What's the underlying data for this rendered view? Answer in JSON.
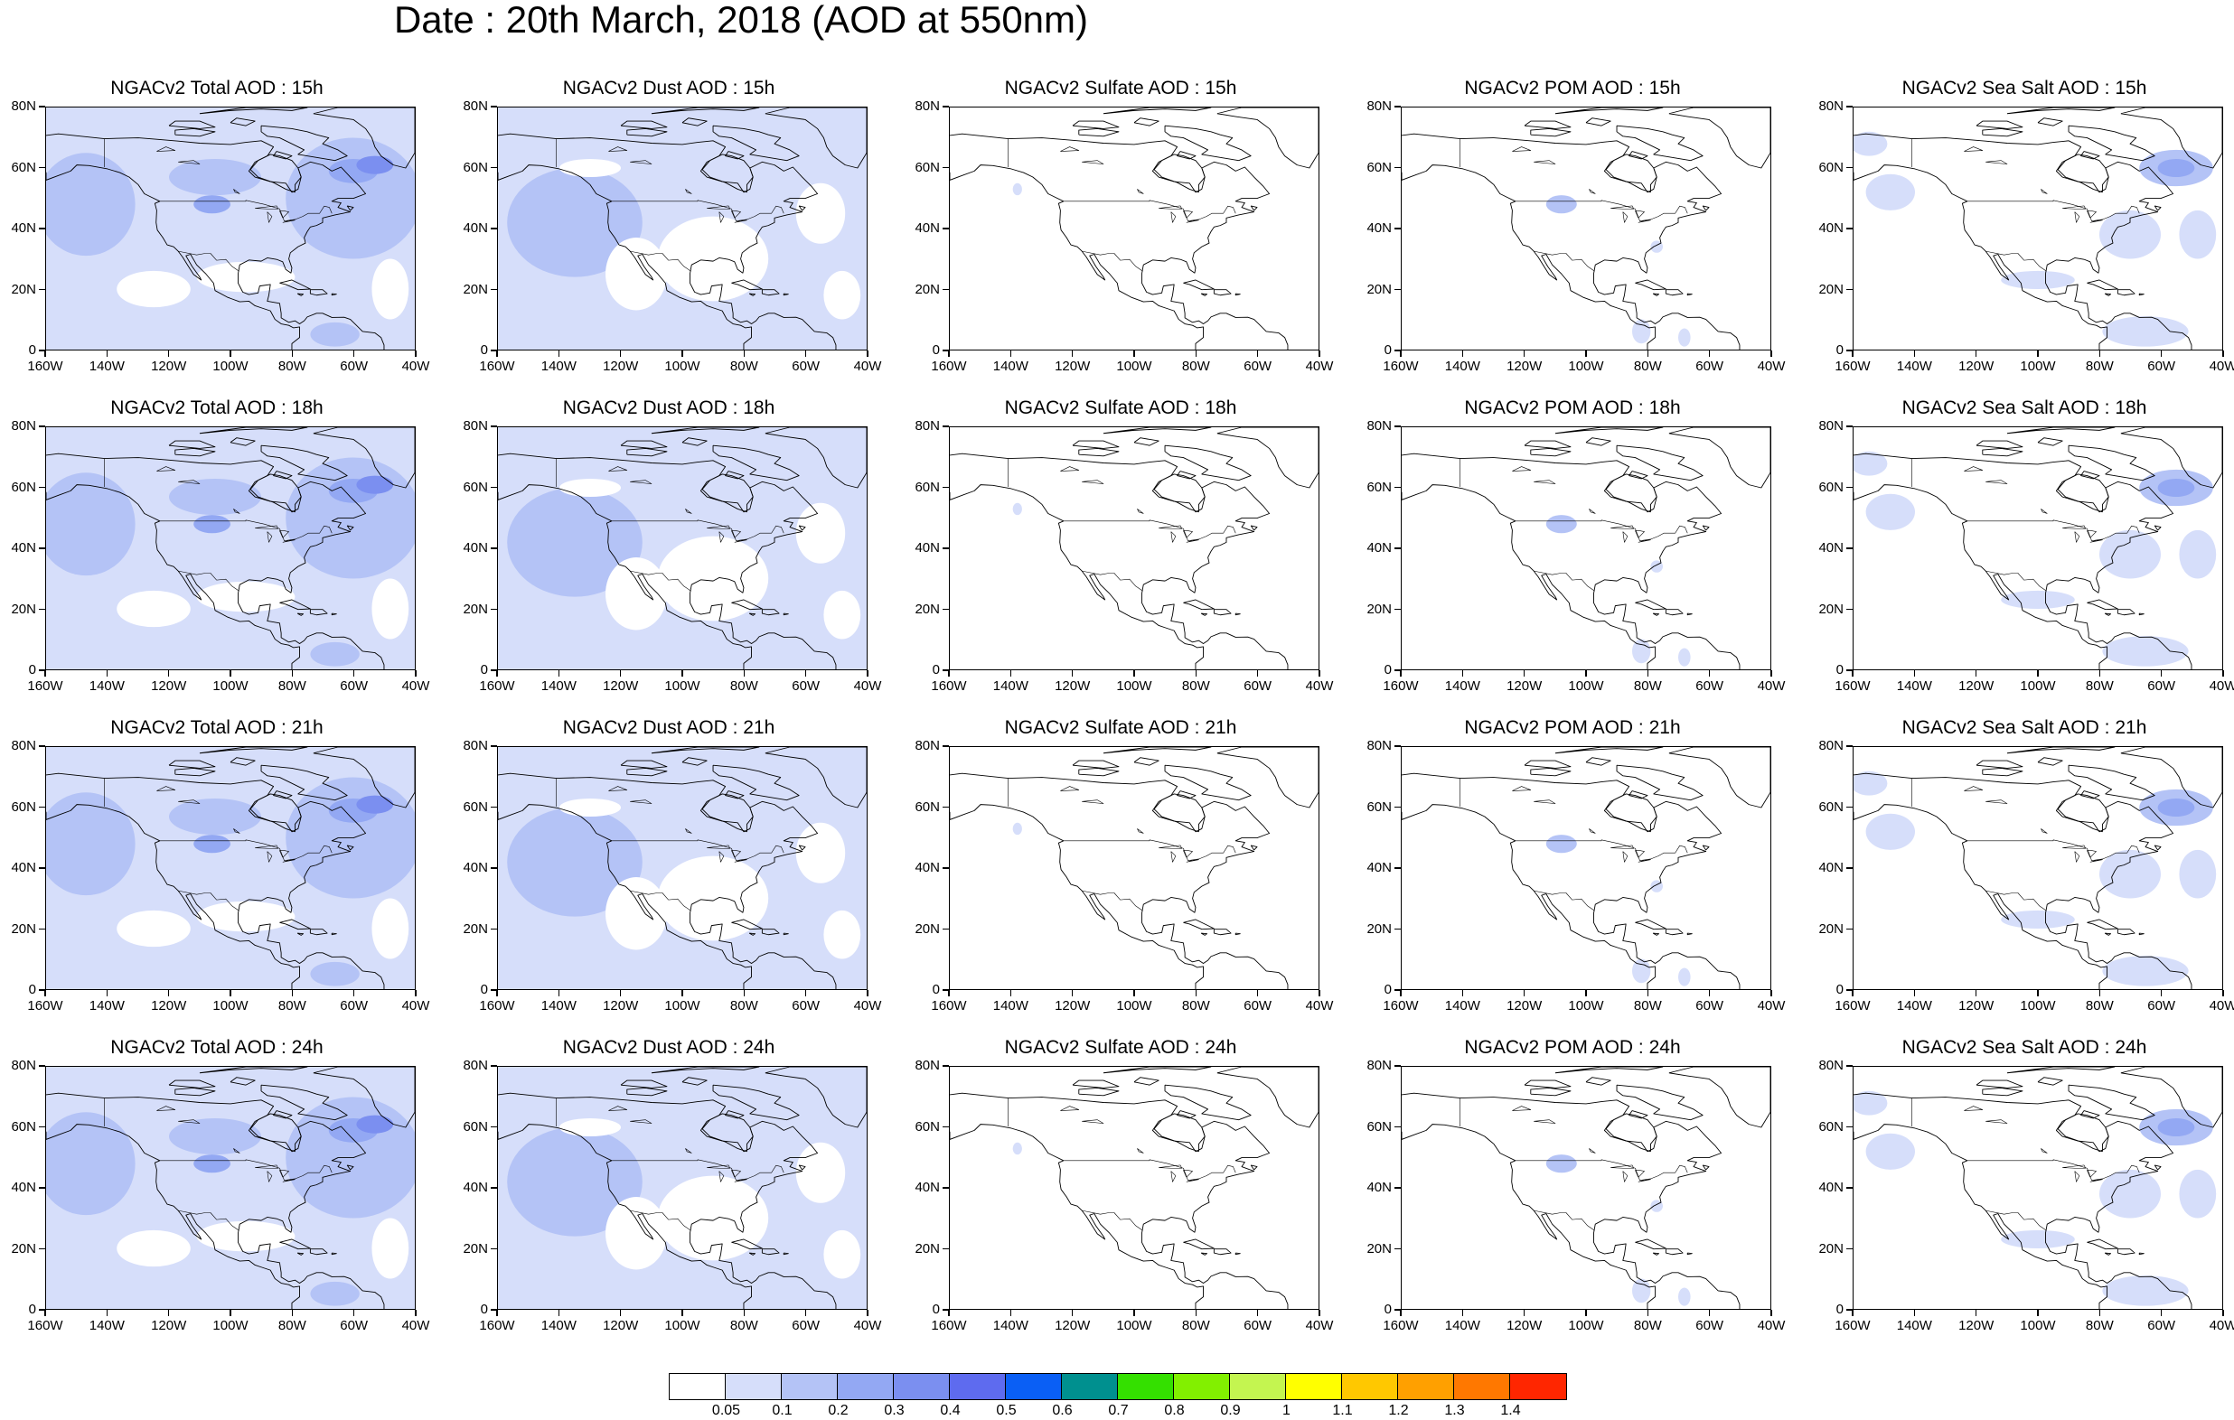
{
  "title": "Date : 20th March, 2018 (AOD at 550nm)",
  "lat_labels": [
    "0",
    "20N",
    "40N",
    "60N",
    "80N"
  ],
  "lon_labels": [
    "160W",
    "140W",
    "120W",
    "100W",
    "80W",
    "60W",
    "40W"
  ],
  "columns": [
    {
      "species": "total",
      "titles": [
        "NGACv2 Total AOD : 15h",
        "NGACv2 Total AOD : 18h",
        "NGACv2 Total AOD : 21h",
        "NGACv2 Total AOD : 24h"
      ]
    },
    {
      "species": "dust",
      "titles": [
        "NGACv2 Dust AOD : 15h",
        "NGACv2 Dust AOD : 18h",
        "NGACv2 Dust AOD : 21h",
        "NGACv2 Dust AOD : 24h"
      ]
    },
    {
      "species": "sulfate",
      "titles": [
        "NGACv2 Sulfate AOD : 15h",
        "NGACv2 Sulfate AOD : 18h",
        "NGACv2 Sulfate AOD : 21h",
        "NGACv2 Sulfate AOD : 24h"
      ]
    },
    {
      "species": "pom",
      "titles": [
        "NGACv2 POM AOD : 15h",
        "NGACv2 POM AOD : 18h",
        "NGACv2 POM AOD : 21h",
        "NGACv2 POM AOD : 24h"
      ]
    },
    {
      "species": "seasalt",
      "titles": [
        "NGACv2 Sea Salt AOD : 15h",
        "NGACv2 Sea Salt AOD : 18h",
        "NGACv2 Sea Salt AOD : 21h",
        "NGACv2 Sea Salt  AOD : 24h"
      ]
    }
  ],
  "colorbar": {
    "labels": [
      "0.05",
      "0.1",
      "0.2",
      "0.3",
      "0.4",
      "0.5",
      "0.6",
      "0.7",
      "0.8",
      "0.9",
      "1",
      "1.1",
      "1.2",
      "1.3",
      "1.4"
    ],
    "colors": [
      "#ffffff",
      "#d6defa",
      "#b4c3f6",
      "#93a8f3",
      "#7b8ff0",
      "#5e6bef",
      "#0a5ff5",
      "#00908f",
      "#34e000",
      "#82f000",
      "#c4f550",
      "#ffff00",
      "#ffc800",
      "#ffa000",
      "#ff7800",
      "#ff2600"
    ]
  }
}
